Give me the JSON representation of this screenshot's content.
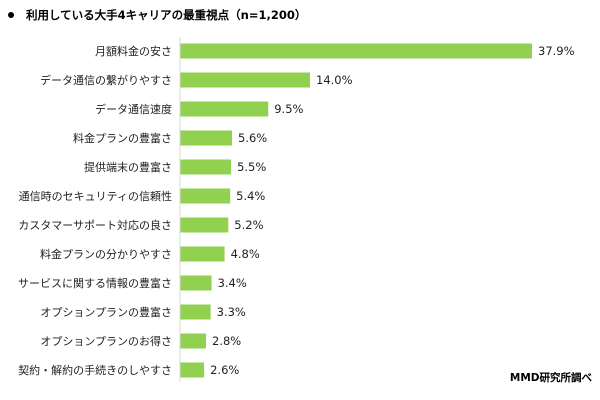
{
  "title": "利用している大手4キャリアの最重視点（n=1,200）",
  "source": "MMD研究所調べ",
  "colors": {
    "bar": "#92D050",
    "axis": "#D9D9D9",
    "text": "#222222"
  },
  "chart_data": {
    "type": "bar",
    "orientation": "horizontal",
    "unit": "%",
    "categories": [
      "月額料金の安さ",
      "データ通信の繋がりやすさ",
      "データ通信速度",
      "料金プランの豊富さ",
      "提供端末の豊富さ",
      "通信時のセキュリティの信頼性",
      "カスタマーサポート対応の良さ",
      "料金プランの分かりやすさ",
      "サービスに関する情報の豊富さ",
      "オプションプランの豊富さ",
      "オプションプランのお得さ",
      "契約・解約の手続きのしやすさ"
    ],
    "values": [
      37.9,
      14.0,
      9.5,
      5.6,
      5.5,
      5.4,
      5.2,
      4.8,
      3.4,
      3.3,
      2.8,
      2.6
    ],
    "value_labels": [
      "37.9%",
      "14.0%",
      "9.5%",
      "5.6%",
      "5.5%",
      "5.4%",
      "5.2%",
      "4.8%",
      "3.4%",
      "3.3%",
      "2.8%",
      "2.6%"
    ],
    "xlim": [
      0,
      40
    ],
    "grid": false,
    "legend": "none"
  }
}
